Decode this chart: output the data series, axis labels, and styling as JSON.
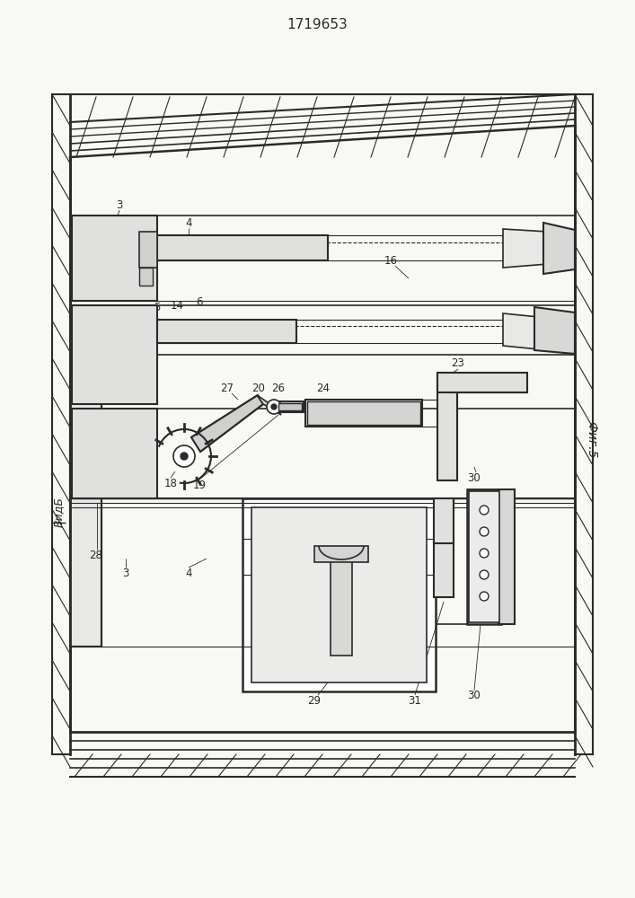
{
  "title": "1719653",
  "line_color": "#2a2a2a",
  "fig_label": "Фиг.5",
  "view_label": "ВидБ",
  "bg": "#f8f8f5"
}
